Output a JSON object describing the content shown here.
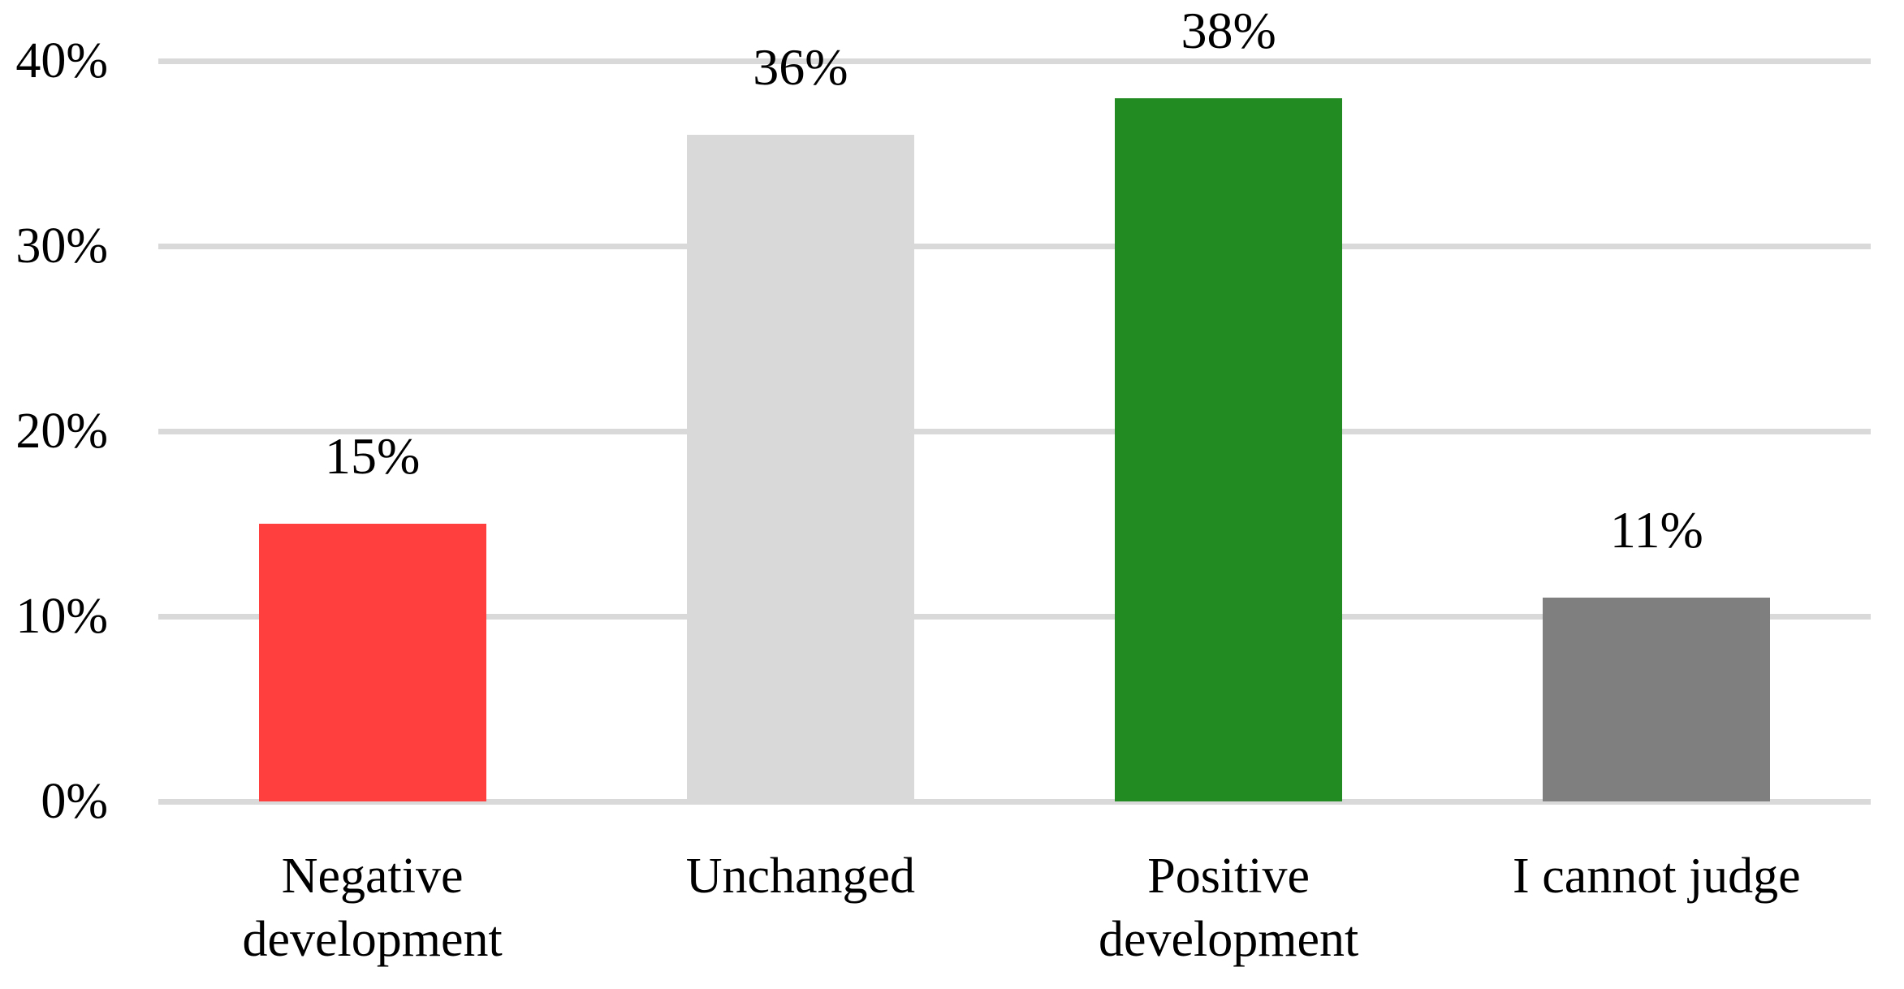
{
  "chart_data": {
    "type": "bar",
    "title": "",
    "xlabel": "",
    "ylabel": "",
    "categories": [
      "Negative development",
      "Unchanged",
      "Positive development",
      "I cannot judge"
    ],
    "values": [
      15,
      36,
      38,
      11
    ],
    "value_labels": [
      "15%",
      "36%",
      "38%",
      "11%"
    ],
    "bar_colors": [
      "#FF3E3E",
      "#D9D9D9",
      "#228B22",
      "#7F7F7F"
    ],
    "y_ticks": [
      {
        "value": 0,
        "label": "0%"
      },
      {
        "value": 10,
        "label": "10%"
      },
      {
        "value": 20,
        "label": "20%"
      },
      {
        "value": 30,
        "label": "30%"
      },
      {
        "value": 40,
        "label": "40%"
      }
    ],
    "ylim": [
      0,
      40
    ],
    "grid": "horizontal",
    "legend": "none",
    "colors": {
      "background": "#FFFFFF",
      "gridline": "#D9D9D9",
      "text": "#000000"
    }
  }
}
